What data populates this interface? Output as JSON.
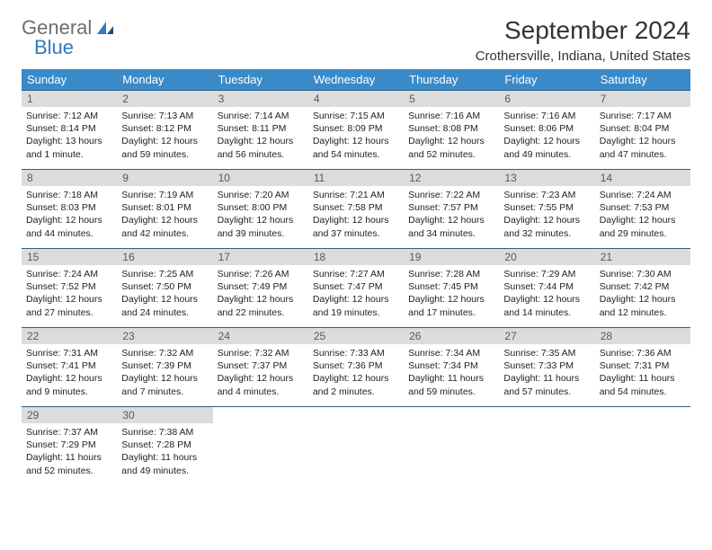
{
  "logo": {
    "part1": "General",
    "part2": "Blue"
  },
  "colors": {
    "header_bg": "#3a8ac8",
    "header_text": "#ffffff",
    "daynum_bg": "#dcdcdc",
    "daynum_text": "#5a5a5a",
    "row_border": "#2b5f87",
    "body_text": "#222222",
    "logo_gray": "#6d6d6d",
    "logo_blue": "#2f7bbf"
  },
  "title": "September 2024",
  "location": "Crothersville, Indiana, United States",
  "weekdays": [
    "Sunday",
    "Monday",
    "Tuesday",
    "Wednesday",
    "Thursday",
    "Friday",
    "Saturday"
  ],
  "days": [
    {
      "n": "1",
      "sunrise": "7:12 AM",
      "sunset": "8:14 PM",
      "daylight": "13 hours and 1 minute."
    },
    {
      "n": "2",
      "sunrise": "7:13 AM",
      "sunset": "8:12 PM",
      "daylight": "12 hours and 59 minutes."
    },
    {
      "n": "3",
      "sunrise": "7:14 AM",
      "sunset": "8:11 PM",
      "daylight": "12 hours and 56 minutes."
    },
    {
      "n": "4",
      "sunrise": "7:15 AM",
      "sunset": "8:09 PM",
      "daylight": "12 hours and 54 minutes."
    },
    {
      "n": "5",
      "sunrise": "7:16 AM",
      "sunset": "8:08 PM",
      "daylight": "12 hours and 52 minutes."
    },
    {
      "n": "6",
      "sunrise": "7:16 AM",
      "sunset": "8:06 PM",
      "daylight": "12 hours and 49 minutes."
    },
    {
      "n": "7",
      "sunrise": "7:17 AM",
      "sunset": "8:04 PM",
      "daylight": "12 hours and 47 minutes."
    },
    {
      "n": "8",
      "sunrise": "7:18 AM",
      "sunset": "8:03 PM",
      "daylight": "12 hours and 44 minutes."
    },
    {
      "n": "9",
      "sunrise": "7:19 AM",
      "sunset": "8:01 PM",
      "daylight": "12 hours and 42 minutes."
    },
    {
      "n": "10",
      "sunrise": "7:20 AM",
      "sunset": "8:00 PM",
      "daylight": "12 hours and 39 minutes."
    },
    {
      "n": "11",
      "sunrise": "7:21 AM",
      "sunset": "7:58 PM",
      "daylight": "12 hours and 37 minutes."
    },
    {
      "n": "12",
      "sunrise": "7:22 AM",
      "sunset": "7:57 PM",
      "daylight": "12 hours and 34 minutes."
    },
    {
      "n": "13",
      "sunrise": "7:23 AM",
      "sunset": "7:55 PM",
      "daylight": "12 hours and 32 minutes."
    },
    {
      "n": "14",
      "sunrise": "7:24 AM",
      "sunset": "7:53 PM",
      "daylight": "12 hours and 29 minutes."
    },
    {
      "n": "15",
      "sunrise": "7:24 AM",
      "sunset": "7:52 PM",
      "daylight": "12 hours and 27 minutes."
    },
    {
      "n": "16",
      "sunrise": "7:25 AM",
      "sunset": "7:50 PM",
      "daylight": "12 hours and 24 minutes."
    },
    {
      "n": "17",
      "sunrise": "7:26 AM",
      "sunset": "7:49 PM",
      "daylight": "12 hours and 22 minutes."
    },
    {
      "n": "18",
      "sunrise": "7:27 AM",
      "sunset": "7:47 PM",
      "daylight": "12 hours and 19 minutes."
    },
    {
      "n": "19",
      "sunrise": "7:28 AM",
      "sunset": "7:45 PM",
      "daylight": "12 hours and 17 minutes."
    },
    {
      "n": "20",
      "sunrise": "7:29 AM",
      "sunset": "7:44 PM",
      "daylight": "12 hours and 14 minutes."
    },
    {
      "n": "21",
      "sunrise": "7:30 AM",
      "sunset": "7:42 PM",
      "daylight": "12 hours and 12 minutes."
    },
    {
      "n": "22",
      "sunrise": "7:31 AM",
      "sunset": "7:41 PM",
      "daylight": "12 hours and 9 minutes."
    },
    {
      "n": "23",
      "sunrise": "7:32 AM",
      "sunset": "7:39 PM",
      "daylight": "12 hours and 7 minutes."
    },
    {
      "n": "24",
      "sunrise": "7:32 AM",
      "sunset": "7:37 PM",
      "daylight": "12 hours and 4 minutes."
    },
    {
      "n": "25",
      "sunrise": "7:33 AM",
      "sunset": "7:36 PM",
      "daylight": "12 hours and 2 minutes."
    },
    {
      "n": "26",
      "sunrise": "7:34 AM",
      "sunset": "7:34 PM",
      "daylight": "11 hours and 59 minutes."
    },
    {
      "n": "27",
      "sunrise": "7:35 AM",
      "sunset": "7:33 PM",
      "daylight": "11 hours and 57 minutes."
    },
    {
      "n": "28",
      "sunrise": "7:36 AM",
      "sunset": "7:31 PM",
      "daylight": "11 hours and 54 minutes."
    },
    {
      "n": "29",
      "sunrise": "7:37 AM",
      "sunset": "7:29 PM",
      "daylight": "11 hours and 52 minutes."
    },
    {
      "n": "30",
      "sunrise": "7:38 AM",
      "sunset": "7:28 PM",
      "daylight": "11 hours and 49 minutes."
    }
  ],
  "labels": {
    "sunrise": "Sunrise: ",
    "sunset": "Sunset: ",
    "daylight": "Daylight: "
  }
}
